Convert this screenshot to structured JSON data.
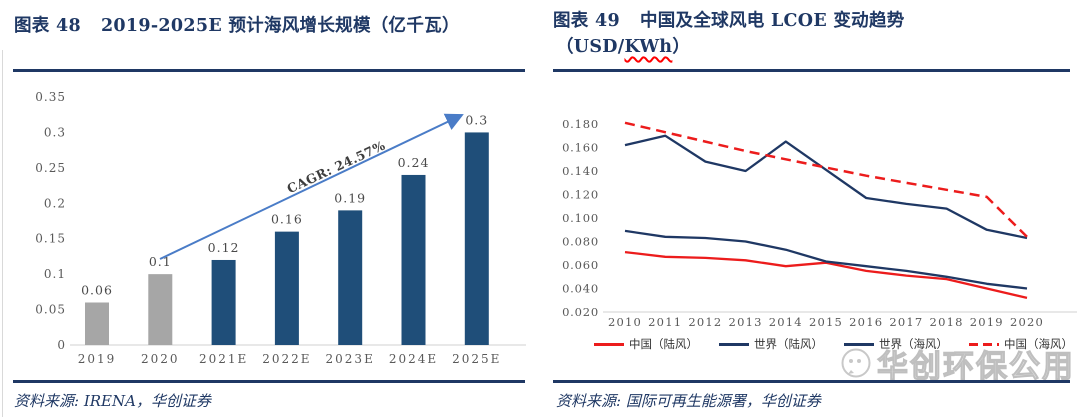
{
  "colors": {
    "navy": "#1f3864",
    "bar_navy": "#1f4e79",
    "bar_gray": "#a6a6a6",
    "red": "#ec1c1c",
    "arrow_blue": "#4a7cc7",
    "axis_line": "#d9d9d9",
    "tick_text": "#595959",
    "watermark": "#bfbfbf"
  },
  "figure48": {
    "label": "图表 48",
    "title": "2019-2025E 预计海风增长规模（亿千瓦）",
    "source": "资料来源: IRENA，华创证券"
  },
  "figure49": {
    "label": "图表 49",
    "title": "中国及全球风电 LCOE 变动趋势",
    "subtitle_prefix": "（USD/",
    "subtitle_kwh": "KWh",
    "subtitle_suffix": "）",
    "source": "资料来源: 国际可再生能源署，华创证券",
    "watermark": "华创环保公用"
  },
  "chart_data": [
    {
      "type": "bar",
      "title": "2019-2025E 预计海风增长规模（亿千瓦）",
      "xlabel": "",
      "ylabel": "",
      "unit": "亿千瓦",
      "categories": [
        "2019",
        "2020",
        "2021E",
        "2022E",
        "2023E",
        "2024E",
        "2025E"
      ],
      "values": [
        0.06,
        0.1,
        0.12,
        0.16,
        0.19,
        0.24,
        0.3
      ],
      "data_labels": [
        "0.06",
        "0.1",
        "0.12",
        "0.16",
        "0.19",
        "0.24",
        "0.3"
      ],
      "bar_color_keys": [
        "bar_gray",
        "bar_gray",
        "bar_navy",
        "bar_navy",
        "bar_navy",
        "bar_navy",
        "bar_navy"
      ],
      "annotation": "CAGR: 24.57%",
      "ylim": [
        0,
        0.35
      ],
      "yticks": [
        0,
        0.05,
        0.1,
        0.15,
        0.2,
        0.25,
        0.3,
        0.35
      ],
      "ytick_labels": [
        "0",
        "0.05",
        "0.1",
        "0.15",
        "0.2",
        "0.25",
        "0.3",
        "0.35"
      ],
      "grid": false,
      "legend_position": "none"
    },
    {
      "type": "line",
      "title": "中国及全球风电 LCOE 变动趋势（USD/KWh）",
      "xlabel": "",
      "ylabel": "",
      "unit": "USD/KWh",
      "x": [
        "2010",
        "2011",
        "2012",
        "2013",
        "2014",
        "2015",
        "2016",
        "2017",
        "2018",
        "2019",
        "2020"
      ],
      "series": [
        {
          "name": "中国（陆风）",
          "style": "solid",
          "color_key": "red",
          "values": [
            0.071,
            0.067,
            0.066,
            0.064,
            0.059,
            0.062,
            0.055,
            0.051,
            0.048,
            0.04,
            0.032
          ]
        },
        {
          "name": "世界（陆风）",
          "style": "solid",
          "color_key": "navy",
          "values": [
            0.089,
            0.084,
            0.083,
            0.08,
            0.073,
            0.063,
            0.059,
            0.055,
            0.05,
            0.044,
            0.04
          ]
        },
        {
          "name": "世界（海风）",
          "style": "solid",
          "color_key": "navy",
          "values": [
            0.162,
            0.17,
            0.148,
            0.14,
            0.165,
            0.141,
            0.117,
            0.112,
            0.108,
            0.09,
            0.083
          ]
        },
        {
          "name": "中国（海风）",
          "style": "dashed",
          "color_key": "red",
          "values": [
            0.181,
            0.173,
            0.165,
            0.157,
            0.15,
            0.143,
            0.136,
            0.13,
            0.124,
            0.118,
            0.084
          ]
        }
      ],
      "ylim": [
        0.02,
        0.18
      ],
      "yticks": [
        0.02,
        0.04,
        0.06,
        0.08,
        0.1,
        0.12,
        0.14,
        0.16,
        0.18
      ],
      "ytick_labels": [
        "0.020",
        "0.040",
        "0.060",
        "0.080",
        "0.100",
        "0.120",
        "0.140",
        "0.160",
        "0.180"
      ],
      "grid": false,
      "legend_position": "bottom"
    }
  ]
}
